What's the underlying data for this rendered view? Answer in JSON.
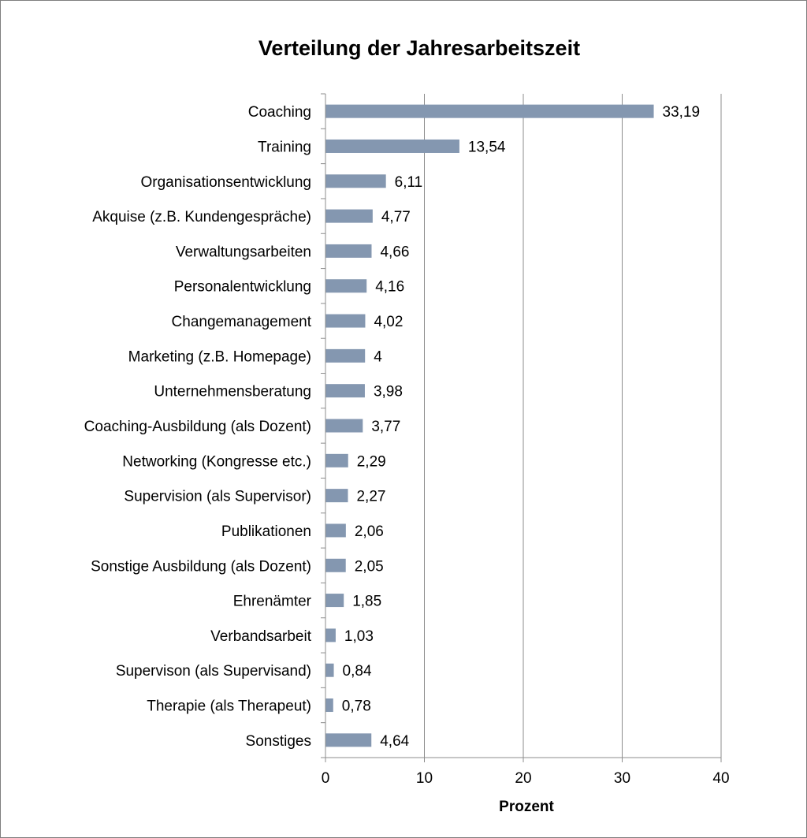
{
  "chart_data": {
    "type": "bar",
    "orientation": "horizontal",
    "title": "Verteilung der Jahresarbeitszeit",
    "xlabel": "Prozent",
    "ylabel": "",
    "xlim": [
      0,
      40
    ],
    "x_ticks": [
      "0",
      "10",
      "20",
      "30",
      "40"
    ],
    "x_tick_values": [
      0,
      10,
      20,
      30,
      40
    ],
    "grid": "vertical",
    "legend": "none",
    "bar_color": "#8497b0",
    "categories": [
      "Coaching",
      "Training",
      "Organisationsentwicklung",
      "Akquise (z.B. Kundengespräche)",
      "Verwaltungsarbeiten",
      "Personalentwicklung",
      "Changemanagement",
      "Marketing (z.B. Homepage)",
      "Unternehmensberatung",
      "Coaching-Ausbildung (als Dozent)",
      "Networking (Kongresse etc.)",
      "Supervision (als Supervisor)",
      "Publikationen",
      "Sonstige Ausbildung (als Dozent)",
      "Ehrenämter",
      "Verbandsarbeit",
      "Supervison (als Supervisand)",
      "Therapie (als Therapeut)",
      "Sonstiges"
    ],
    "values": [
      33.19,
      13.54,
      6.11,
      4.77,
      4.66,
      4.16,
      4.02,
      4,
      3.98,
      3.77,
      2.29,
      2.27,
      2.06,
      2.05,
      1.85,
      1.03,
      0.84,
      0.78,
      4.64
    ],
    "data_labels": [
      "33,19",
      "13,54",
      "6,11",
      "4,77",
      "4,66",
      "4,16",
      "4,02",
      "4",
      "3,98",
      "3,77",
      "2,29",
      "2,27",
      "2,06",
      "2,05",
      "1,85",
      "1,03",
      "0,84",
      "0,78",
      "4,64"
    ]
  }
}
